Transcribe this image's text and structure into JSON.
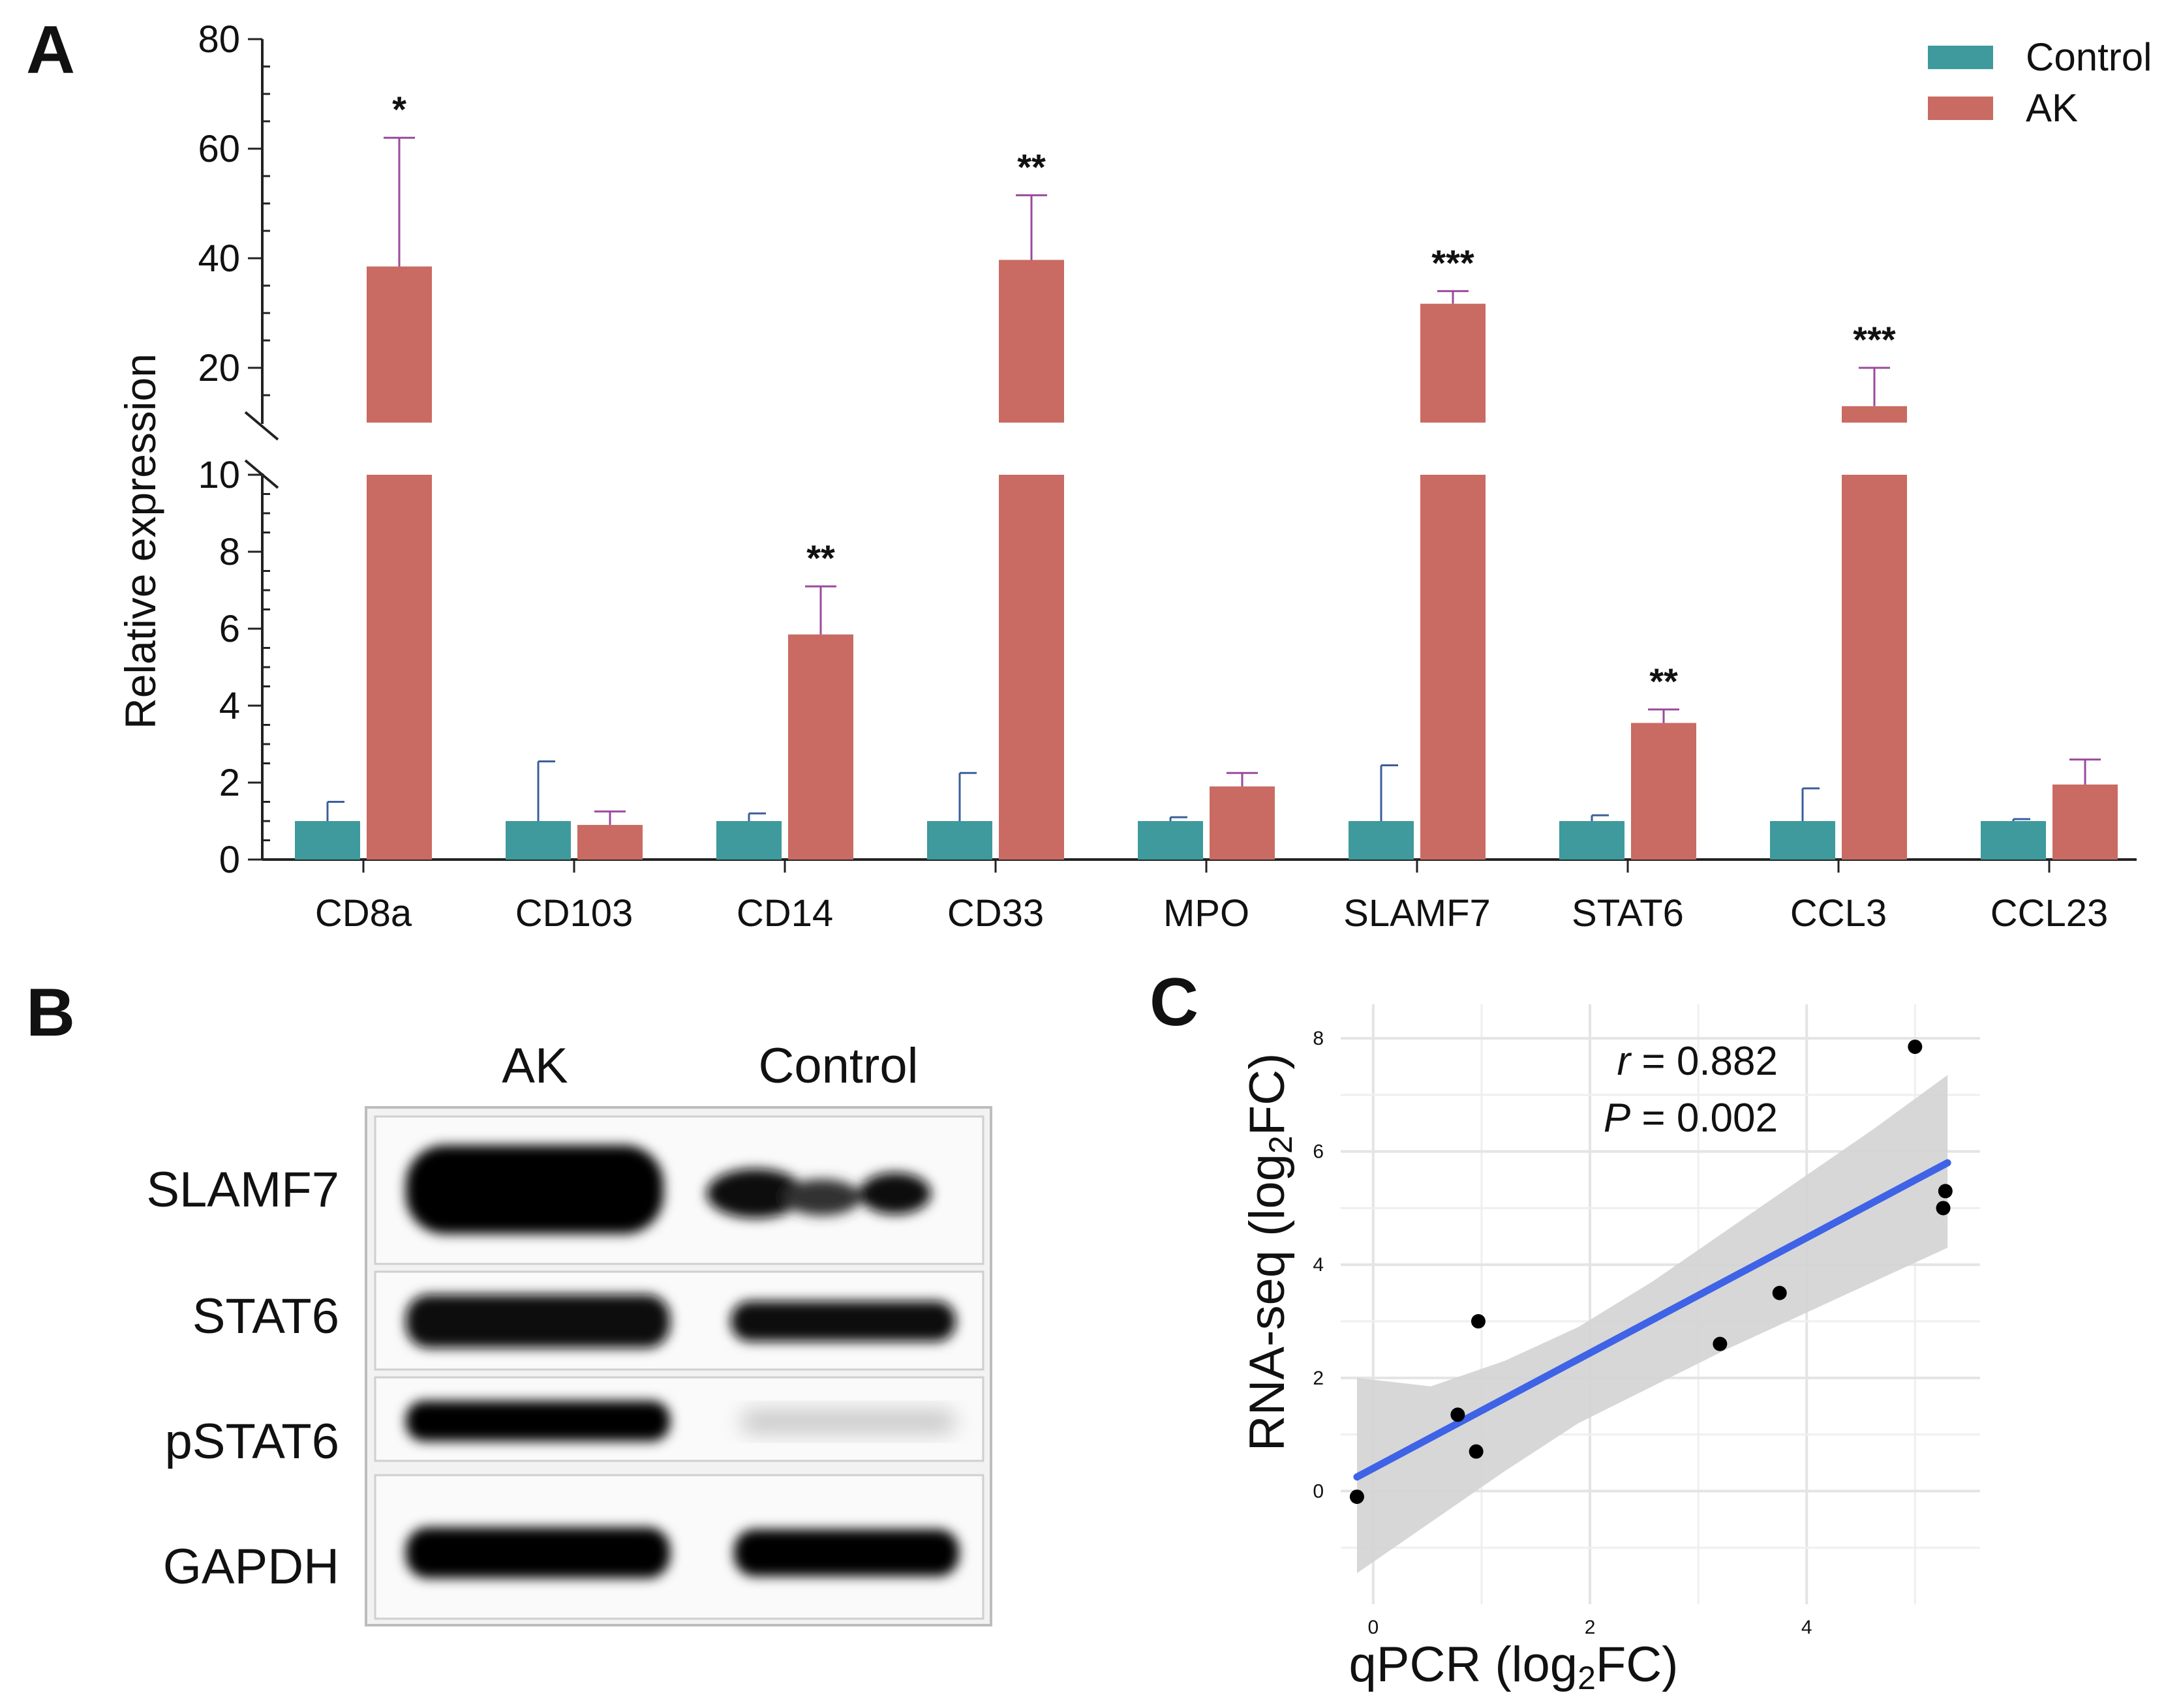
{
  "panels": {
    "a": "A",
    "b": "B",
    "c": "C"
  },
  "colors": {
    "control": "#3e9a9c",
    "ak": "#c96b62",
    "ak_err": "#9b4a9c",
    "ctrl_err": "#3b5e9a",
    "fit": "#3f63e6",
    "ci": "#d3d3d3"
  },
  "chart_data": [
    {
      "type": "bar",
      "panel": "A",
      "ylabel": "Relative expression",
      "categories": [
        "CD8a",
        "CD103",
        "CD14",
        "CD33",
        "MPO",
        "SLAMF7",
        "STAT6",
        "CCL3",
        "CCL23"
      ],
      "series": [
        {
          "name": "Control",
          "values": [
            1,
            1,
            1,
            1,
            1,
            1,
            1,
            1,
            1
          ],
          "error": [
            0.5,
            1.55,
            0.2,
            1.25,
            0.1,
            1.45,
            0.15,
            0.85,
            0.05
          ]
        },
        {
          "name": "AK",
          "values": [
            38.5,
            0.9,
            5.85,
            39.7,
            1.9,
            31.7,
            3.55,
            13.0,
            1.95
          ],
          "error": [
            23.5,
            0.35,
            1.25,
            11.8,
            0.35,
            2.3,
            0.35,
            7.0,
            0.65
          ]
        }
      ],
      "significance": [
        "*",
        "",
        "**",
        "**",
        "",
        "***",
        "**",
        "***",
        ""
      ],
      "y_axis_lower": {
        "range": [
          0,
          10
        ],
        "ticks": [
          "0",
          "2",
          "4",
          "6",
          "8",
          "10"
        ]
      },
      "y_axis_upper": {
        "range": [
          10,
          80
        ],
        "ticks": [
          "20",
          "40",
          "60",
          "80"
        ]
      },
      "legend": [
        "Control",
        "AK"
      ],
      "legend_position": "top-right"
    },
    {
      "type": "scatter",
      "panel": "C",
      "xlabel_main": "qPCR (log",
      "xlabel_sub": "2",
      "xlabel_end": "FC)",
      "ylabel_main": "RNA-seq (log",
      "ylabel_sub": "2",
      "ylabel_end": "FC)",
      "xlim": [
        -0.3,
        5.6
      ],
      "ylim": [
        -2.0,
        8.6
      ],
      "xticks": [
        "0",
        "2",
        "4"
      ],
      "yticks": [
        "0",
        "2",
        "4",
        "6",
        "8"
      ],
      "points": [
        [
          -0.15,
          -0.1
        ],
        [
          0.78,
          1.35
        ],
        [
          0.95,
          0.7
        ],
        [
          0.97,
          3.0
        ],
        [
          3.2,
          2.6
        ],
        [
          3.75,
          3.5
        ],
        [
          5.0,
          7.85
        ],
        [
          5.28,
          5.3
        ],
        [
          5.26,
          5.0
        ]
      ],
      "fit": {
        "x": [
          -0.15,
          5.3
        ],
        "y": [
          0.25,
          5.8
        ]
      },
      "ci_upper": [
        2.0,
        1.85,
        2.3,
        2.9,
        3.7,
        4.6,
        5.5,
        6.4,
        7.35
      ],
      "ci_lower": [
        -1.45,
        -0.55,
        0.35,
        1.2,
        1.85,
        2.5,
        3.1,
        3.7,
        4.3
      ],
      "annotation_r_label": "r",
      "annotation_r_value": " = 0.882",
      "annotation_p_label": "P",
      "annotation_p_value": " = 0.002"
    }
  ],
  "western_blot": {
    "lanes": [
      "AK",
      "Control"
    ],
    "rows": [
      "SLAMF7",
      "STAT6",
      "pSTAT6",
      "GAPDH"
    ]
  }
}
